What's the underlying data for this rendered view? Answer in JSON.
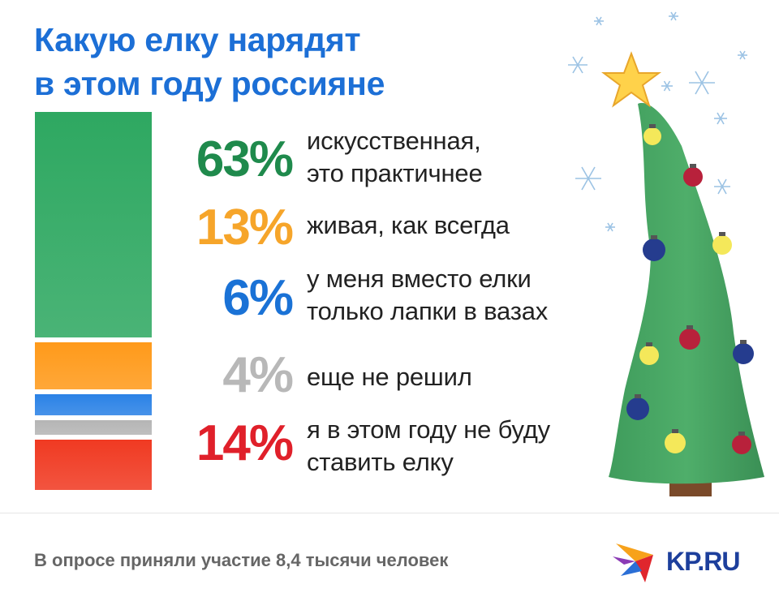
{
  "title": {
    "line1": "Какую елку нарядят",
    "line2": "в этом году россияне"
  },
  "chart_data": {
    "type": "bar",
    "stacked": true,
    "categories": [
      "искусственная, это практичнее",
      "живая, как всегда",
      "у меня вместо елки только лапки в вазах",
      "еще не решил",
      "я в этом году не буду ставить елку"
    ],
    "values": [
      63,
      13,
      6,
      4,
      14
    ],
    "labels": [
      "63%",
      "13%",
      "6%",
      "4%",
      "14%"
    ],
    "colors": [
      "#2ea861",
      "#ff9a1a",
      "#2b82e6",
      "#b5b5b5",
      "#f03a22"
    ],
    "text_colors": [
      "#1f8a4c",
      "#f6a52a",
      "#1a72d6",
      "#b8b8b8",
      "#e0202a"
    ]
  },
  "items": [
    {
      "pct": "63%",
      "line1": "искусственная,",
      "line2": "это практичнее"
    },
    {
      "pct": "13%",
      "line1": "живая, как всегда",
      "line2": ""
    },
    {
      "pct": "6%",
      "line1": "у меня вместо елки",
      "line2": "только лапки в вазах"
    },
    {
      "pct": "4%",
      "line1": "еще не решил",
      "line2": ""
    },
    {
      "pct": "14%",
      "line1": "я в этом году не буду",
      "line2": "ставить елку"
    }
  ],
  "footnote": "В опросе приняли участие 8,4 тысячи человек",
  "logo": {
    "text": "KP.RU"
  },
  "illustration": {
    "icon": "christmas-tree-icon"
  }
}
